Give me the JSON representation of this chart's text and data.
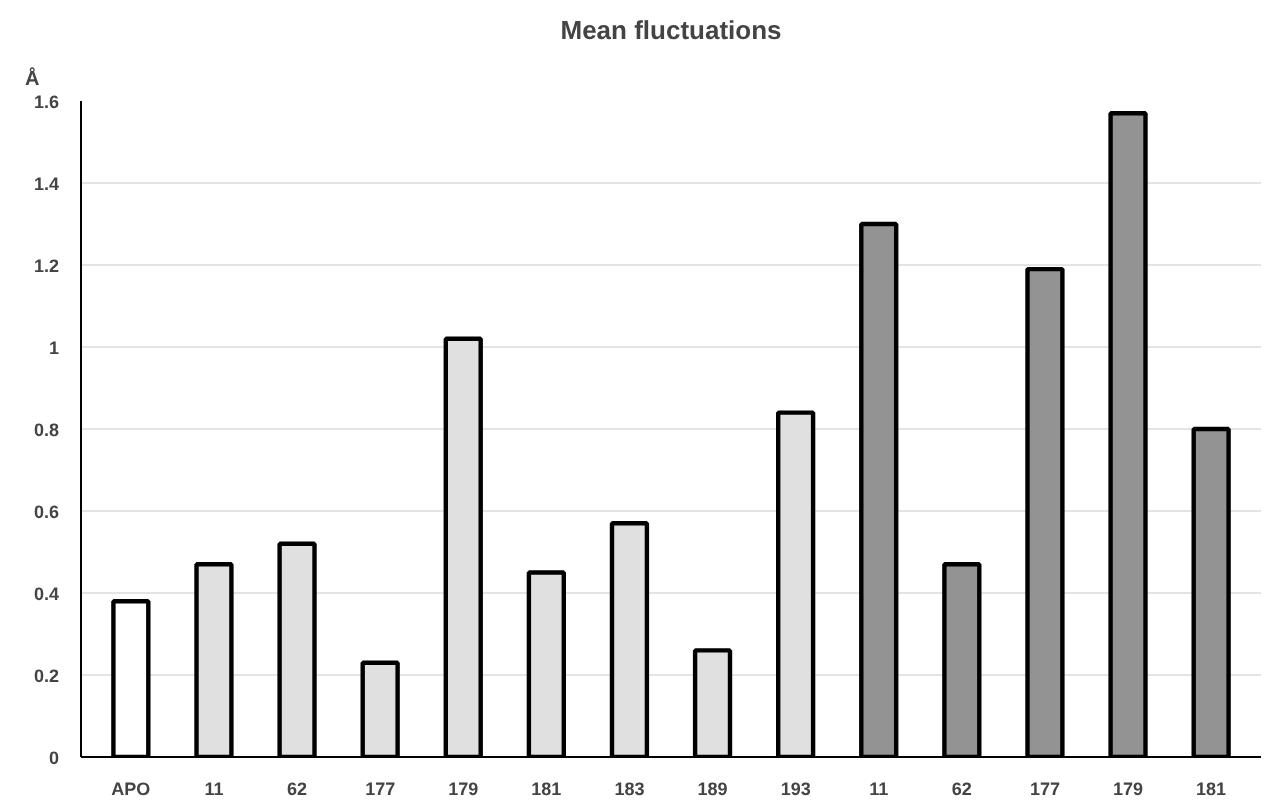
{
  "chart_data": {
    "type": "bar",
    "title": "Mean fluctuations",
    "ylabel": "Å",
    "categories": [
      "APO",
      "11",
      "62",
      "177",
      "179",
      "181",
      "183",
      "189",
      "193",
      "11",
      "62",
      "177",
      "179",
      "181"
    ],
    "values": [
      0.38,
      0.47,
      0.52,
      0.23,
      1.02,
      0.45,
      0.57,
      0.26,
      0.84,
      1.3,
      0.47,
      1.19,
      1.57,
      0.8
    ],
    "colors": [
      "#ffffff",
      "#e0e0e0",
      "#e0e0e0",
      "#e0e0e0",
      "#e0e0e0",
      "#e0e0e0",
      "#e0e0e0",
      "#e0e0e0",
      "#e0e0e0",
      "#939393",
      "#939393",
      "#939393",
      "#939393",
      "#939393"
    ],
    "ylim": [
      0,
      1.6
    ],
    "yticks": [
      0,
      {
        "value": 0.2,
        "label": "0.2"
      },
      {
        "value": 0.4,
        "label": "0.4"
      },
      {
        "value": 0.6,
        "label": "0.6"
      },
      {
        "value": 0.8,
        "label": "0.8"
      },
      1,
      {
        "value": 1.2,
        "label": "1.2"
      },
      {
        "value": 1.4,
        "label": "1.4"
      },
      {
        "value": 1.6,
        "label": "1.6"
      }
    ],
    "grid": "y"
  }
}
